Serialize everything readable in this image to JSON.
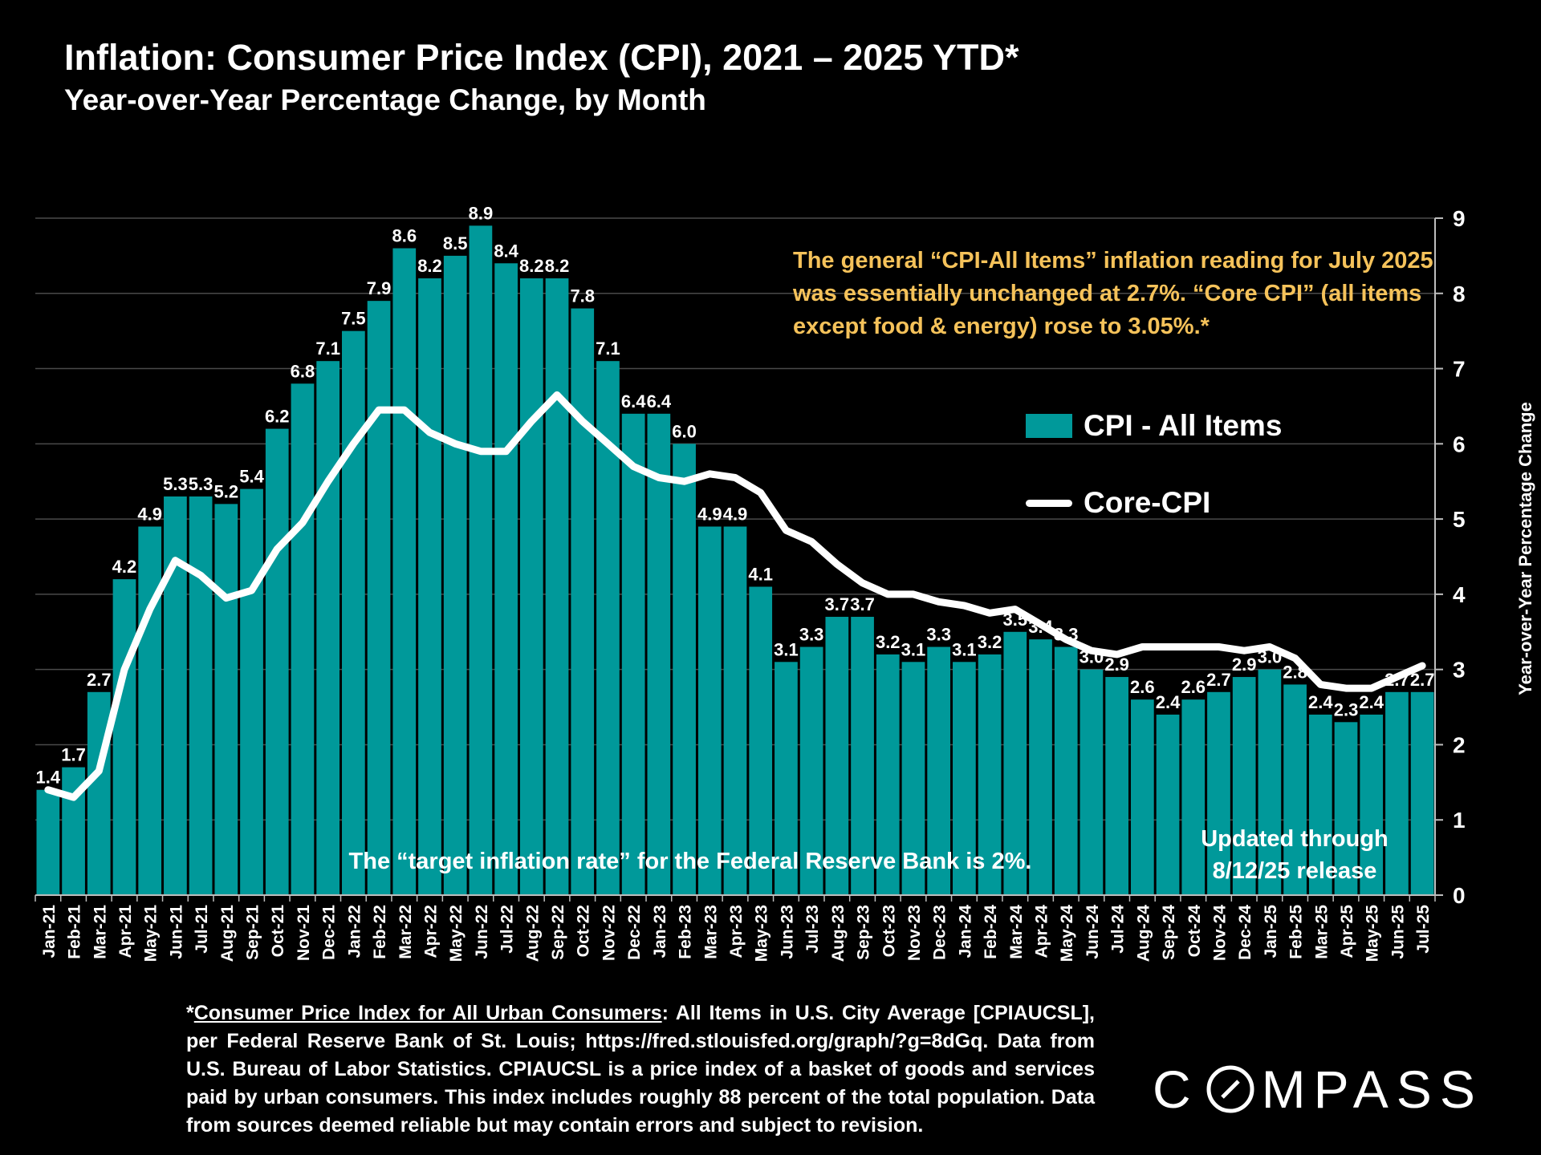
{
  "title": "Inflation: Consumer Price Index (CPI), 2021 – 2025 YTD*",
  "subtitle": "Year-over-Year Percentage Change, by Month",
  "callout": "The general “CPI-All Items” inflation reading for July 2025 was essentially unchanged at 2.7%. “Core CPI” (all items except food & energy) rose to 3.05%.*",
  "legend": {
    "cpi_label": "CPI - All Items",
    "core_label": "Core-CPI"
  },
  "target_note": "The “target inflation rate” for the Federal Reserve Bank is 2%.",
  "updated_note_line1": "Updated through",
  "updated_note_line2": "8/12/25 release",
  "footnote": {
    "star": "*",
    "link_text": "Consumer Price Index for All Urban Consumers",
    "body": ": All Items in U.S. City Average [CPIAUCSL], per Federal Reserve Bank of St. Louis; https://fred.stlouisfed.org/graph/?g=8dGq. Data from U.S. Bureau of Labor Statistics. CPIAUCSL is a price index of a basket of goods and services paid by urban consumers. This index includes roughly 88 percent of the total population. Data from sources deemed reliable but may contain errors and subject to revision."
  },
  "logo": {
    "left": "C",
    "right": "MPASS"
  },
  "colors": {
    "bar": "#00999a",
    "core_line": "#ffffff",
    "callout": "#f5c25a",
    "grid": "#4a4a4a"
  },
  "chart_data": {
    "type": "bar",
    "ylabel": "Year-over-Year Percentage Change",
    "ylim": [
      0,
      9
    ],
    "yticks": [
      0,
      1,
      2,
      3,
      4,
      5,
      6,
      7,
      8,
      9
    ],
    "grid": true,
    "legend_position": "right",
    "categories": [
      "Jan-21",
      "Feb-21",
      "Mar-21",
      "Apr-21",
      "May-21",
      "Jun-21",
      "Jul-21",
      "Aug-21",
      "Sep-21",
      "Oct-21",
      "Nov-21",
      "Dec-21",
      "Jan-22",
      "Feb-22",
      "Mar-22",
      "Apr-22",
      "May-22",
      "Jun-22",
      "Jul-22",
      "Aug-22",
      "Sep-22",
      "Oct-22",
      "Nov-22",
      "Dec-22",
      "Jan-23",
      "Feb-23",
      "Mar-23",
      "Apr-23",
      "May-23",
      "Jun-23",
      "Jul-23",
      "Aug-23",
      "Sep-23",
      "Oct-23",
      "Nov-23",
      "Dec-23",
      "Jan-24",
      "Feb-24",
      "Mar-24",
      "Apr-24",
      "May-24",
      "Jun-24",
      "Jul-24",
      "Aug-24",
      "Sep-24",
      "Oct-24",
      "Nov-24",
      "Dec-24",
      "Jan-25",
      "Feb-25",
      "Mar-25",
      "Apr-25",
      "May-25",
      "Jun-25",
      "Jul-25"
    ],
    "series": [
      {
        "name": "CPI - All Items",
        "type": "bar",
        "values": [
          1.4,
          1.7,
          2.7,
          4.2,
          4.9,
          5.3,
          5.3,
          5.2,
          5.4,
          6.2,
          6.8,
          7.1,
          7.5,
          7.9,
          8.6,
          8.2,
          8.5,
          8.9,
          8.4,
          8.2,
          8.2,
          7.8,
          7.1,
          6.4,
          6.4,
          6.0,
          4.9,
          4.9,
          4.1,
          3.1,
          3.3,
          3.7,
          3.7,
          3.2,
          3.1,
          3.3,
          3.1,
          3.2,
          3.5,
          3.4,
          3.3,
          3.0,
          2.9,
          2.6,
          2.4,
          2.6,
          2.7,
          2.9,
          3.0,
          2.8,
          2.4,
          2.3,
          2.4,
          2.7,
          2.7
        ]
      },
      {
        "name": "Core-CPI",
        "type": "line",
        "values": [
          1.4,
          1.3,
          1.65,
          3.0,
          3.8,
          4.45,
          4.25,
          3.95,
          4.05,
          4.6,
          4.95,
          5.5,
          6.0,
          6.45,
          6.45,
          6.15,
          6.0,
          5.9,
          5.9,
          6.3,
          6.65,
          6.3,
          6.0,
          5.7,
          5.55,
          5.5,
          5.6,
          5.55,
          5.35,
          4.85,
          4.7,
          4.4,
          4.15,
          4.0,
          4.0,
          3.9,
          3.85,
          3.75,
          3.8,
          3.6,
          3.4,
          3.25,
          3.2,
          3.3,
          3.3,
          3.3,
          3.3,
          3.25,
          3.3,
          3.15,
          2.8,
          2.75,
          2.75,
          2.9,
          3.05
        ]
      }
    ]
  }
}
